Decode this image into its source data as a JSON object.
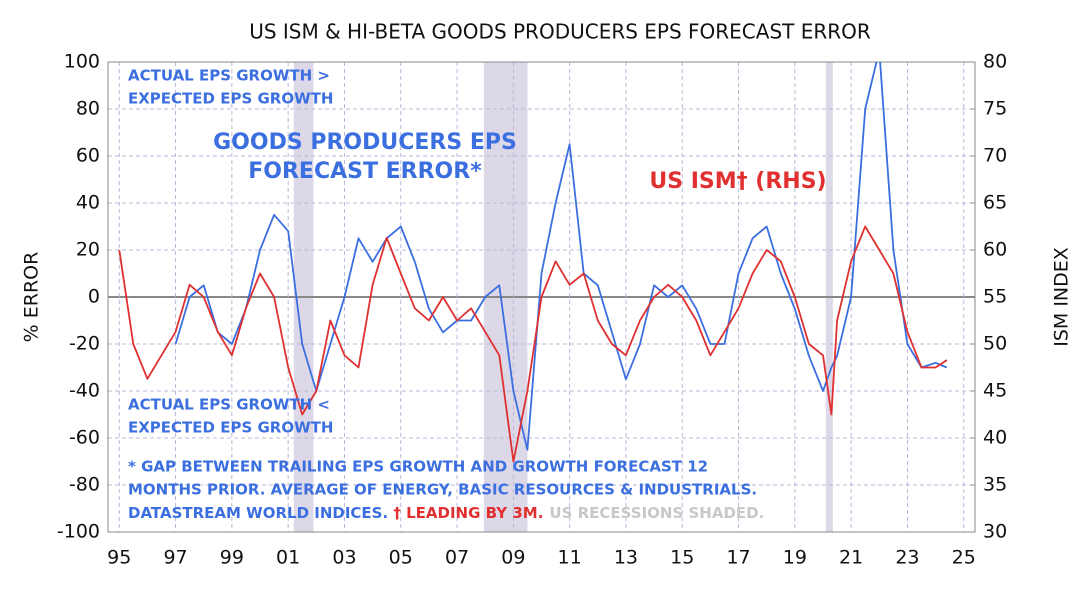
{
  "chart_data": {
    "type": "line",
    "title": "US ISM & HI-BETA GOODS PRODUCERS EPS FORECAST ERROR",
    "ylabel": "% ERROR",
    "y2label": "ISM INDEX",
    "annotations": {
      "above": [
        "ACTUAL EPS GROWTH >",
        "EXPECTED EPS GROWTH"
      ],
      "eps_label": [
        "GOODS PRODUCERS EPS",
        "FORECAST ERROR*"
      ],
      "ism_label": "US ISM† (RHS)",
      "below": [
        "ACTUAL EPS GROWTH <",
        "EXPECTED EPS GROWTH"
      ],
      "footnote": [
        "* GAP BETWEEN TRAILING EPS GROWTH AND GROWTH FORECAST 12",
        "MONTHS PRIOR.  AVERAGE OF ENERGY, BASIC RESOURCES & INDUSTRIALS.",
        "DATASTREAM WORLD INDICES. "
      ],
      "lead": "† LEADING BY 3M.",
      "recession_note": "US RECESSIONS SHADED."
    },
    "recessions": [
      [
        2001.2,
        2001.9
      ],
      [
        2007.95,
        2009.5
      ],
      [
        2020.1,
        2020.35
      ]
    ],
    "recession_color": "#ddd8e8",
    "x": [
      1995,
      1995.5,
      1996,
      1996.5,
      1997,
      1997.5,
      1998,
      1998.5,
      1999,
      1999.5,
      2000,
      2000.5,
      2001,
      2001.5,
      2002,
      2002.5,
      2003,
      2003.5,
      2004,
      2004.5,
      2005,
      2005.5,
      2006,
      2006.5,
      2007,
      2007.5,
      2008,
      2008.5,
      2009,
      2009.5,
      2010,
      2010.5,
      2011,
      2011.5,
      2012,
      2012.5,
      2013,
      2013.5,
      2014,
      2014.5,
      2015,
      2015.5,
      2016,
      2016.5,
      2017,
      2017.5,
      2018,
      2018.5,
      2019,
      2019.5,
      2020,
      2020.3,
      2020.5,
      2021,
      2021.5,
      2022,
      2022.5,
      2023,
      2023.5,
      2024,
      2024.4
    ],
    "series": [
      {
        "name": "GOODS PRODUCERS EPS FORECAST ERROR",
        "color": "#3b6fe0",
        "axis": "y",
        "values": [
          null,
          null,
          null,
          null,
          -20,
          0,
          5,
          -15,
          -20,
          -5,
          20,
          35,
          28,
          -20,
          -40,
          -20,
          0,
          25,
          15,
          25,
          30,
          15,
          -5,
          -15,
          -10,
          -10,
          0,
          5,
          -40,
          -65,
          10,
          40,
          65,
          10,
          5,
          -15,
          -35,
          -20,
          5,
          0,
          5,
          -5,
          -20,
          -20,
          10,
          25,
          30,
          10,
          -5,
          -25,
          -40,
          -30,
          -25,
          0,
          80,
          105,
          20,
          -20,
          -30,
          -28,
          -30
        ]
      },
      {
        "name": "US ISM (RHS)",
        "color": "#e03030",
        "axis": "y2",
        "values": [
          60,
          50,
          46.3,
          48.8,
          51.3,
          56.3,
          55,
          51.3,
          48.8,
          53.8,
          57.5,
          55,
          47.5,
          42.5,
          45,
          52.5,
          48.8,
          47.5,
          56.3,
          61.3,
          57.5,
          53.8,
          52.5,
          55,
          52.5,
          53.8,
          51.3,
          48.8,
          37.5,
          45,
          55,
          58.8,
          56.3,
          57.5,
          52.5,
          50,
          48.8,
          52.5,
          55,
          56.3,
          55,
          52.5,
          48.8,
          51.3,
          53.8,
          57.5,
          60,
          58.8,
          55,
          50,
          48.8,
          42.5,
          52.5,
          58.8,
          62.5,
          60,
          57.5,
          51.3,
          47.5,
          47.5,
          48.3
        ]
      }
    ],
    "xlim": [
      1994.6,
      2025.4
    ],
    "xticks": [
      {
        "value": 1995,
        "label": "95"
      },
      {
        "value": 1997,
        "label": "97"
      },
      {
        "value": 1999,
        "label": "99"
      },
      {
        "value": 2001,
        "label": "01"
      },
      {
        "value": 2003,
        "label": "03"
      },
      {
        "value": 2005,
        "label": "05"
      },
      {
        "value": 2007,
        "label": "07"
      },
      {
        "value": 2009,
        "label": "09"
      },
      {
        "value": 2011,
        "label": "11"
      },
      {
        "value": 2013,
        "label": "13"
      },
      {
        "value": 2015,
        "label": "15"
      },
      {
        "value": 2017,
        "label": "17"
      },
      {
        "value": 2019,
        "label": "19"
      },
      {
        "value": 2021,
        "label": "21"
      },
      {
        "value": 2023,
        "label": "23"
      },
      {
        "value": 2025,
        "label": "25"
      }
    ],
    "ylim": [
      -100,
      100
    ],
    "yticks": [
      -100,
      -80,
      -60,
      -40,
      -20,
      0,
      20,
      40,
      60,
      80,
      100
    ],
    "y2lim": [
      30,
      80
    ],
    "y2ticks": [
      30,
      35,
      40,
      45,
      50,
      55,
      60,
      65,
      70,
      75,
      80
    ],
    "grid": true
  }
}
